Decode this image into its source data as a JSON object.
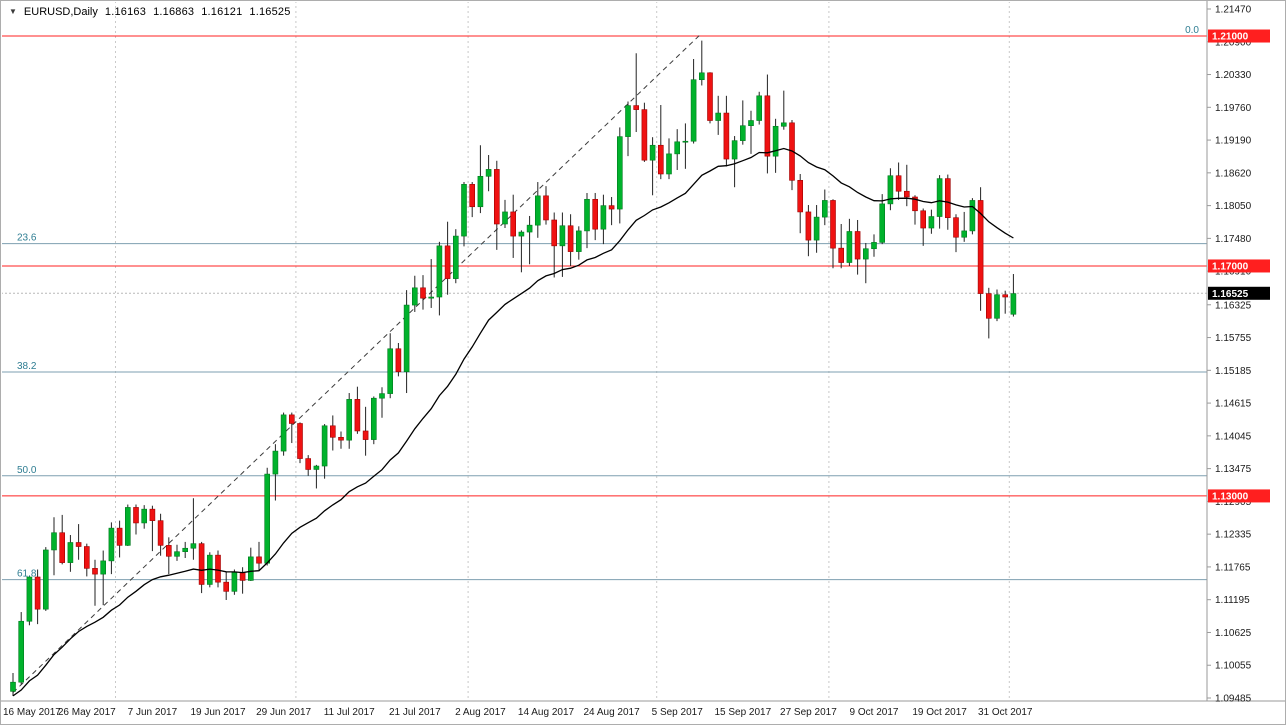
{
  "header": {
    "expand_icon": "▼",
    "symbol": "EURUSD,Daily",
    "open": "1.16163",
    "high": "1.16863",
    "low": "1.16121",
    "close": "1.16525"
  },
  "colors": {
    "up": "#00b22c",
    "up_stroke": "#007a1e",
    "down": "#ef1212",
    "down_stroke": "#9d0000",
    "wick": "#222222",
    "ma": "#000000",
    "trendline": "#3c3c3c",
    "separator": "#c9c9c9",
    "fib_line": "#7e9fb0",
    "fib_label": "#2e7d92",
    "hline": "#ff2020",
    "current_line": "#b8b8b8",
    "frame": "#9a9a9a",
    "axis_text": "#1a1a1a",
    "tag_red_bg": "#ff1f1f",
    "tag_black_bg": "#000000",
    "tag_text": "#ffffff"
  },
  "y_axis": {
    "labels": [
      "1.21470",
      "1.20900",
      "1.20330",
      "1.19760",
      "1.19190",
      "1.18620",
      "1.18050",
      "1.17480",
      "1.16910",
      "1.16325",
      "1.15755",
      "1.15185",
      "1.14615",
      "1.14045",
      "1.13475",
      "1.12905",
      "1.12335",
      "1.11765",
      "1.11195",
      "1.10625",
      "1.10055",
      "1.09485"
    ]
  },
  "x_axis": {
    "labels": [
      {
        "i": 1,
        "t": "16 May 2017"
      },
      {
        "i": 9,
        "t": "26 May 2017"
      },
      {
        "i": 17,
        "t": "7 Jun 2017"
      },
      {
        "i": 25,
        "t": "19 Jun 2017"
      },
      {
        "i": 33,
        "t": "29 Jun 2017"
      },
      {
        "i": 41,
        "t": "11 Jul 2017"
      },
      {
        "i": 49,
        "t": "21 Jul 2017"
      },
      {
        "i": 57,
        "t": "2 Aug 2017"
      },
      {
        "i": 65,
        "t": "14 Aug 2017"
      },
      {
        "i": 73,
        "t": "24 Aug 2017"
      },
      {
        "i": 81,
        "t": "5 Sep 2017"
      },
      {
        "i": 89,
        "t": "15 Sep 2017"
      },
      {
        "i": 97,
        "t": "27 Sep 2017"
      },
      {
        "i": 105,
        "t": "9 Oct 2017"
      },
      {
        "i": 113,
        "t": "19 Oct 2017"
      },
      {
        "i": 121,
        "t": "31 Oct 2017"
      }
    ]
  },
  "price_scale": {
    "current_tag": "1.16525"
  },
  "chart_data": {
    "type": "candlestick",
    "symbol": "EURUSD",
    "timeframe": "Daily",
    "current_ohlc": {
      "open": 1.16163,
      "high": 1.16863,
      "low": 1.16121,
      "close": 1.16525
    },
    "y_range": [
      1.09485,
      1.2147
    ],
    "candles": [
      [
        1.096,
        1.0992,
        1.0952,
        1.0976
      ],
      [
        1.0976,
        1.1098,
        1.0972,
        1.1082
      ],
      [
        1.1082,
        1.116,
        1.1075,
        1.1159
      ],
      [
        1.1159,
        1.1172,
        1.1077,
        1.1103
      ],
      [
        1.1103,
        1.1211,
        1.11,
        1.1206
      ],
      [
        1.1206,
        1.1263,
        1.1162,
        1.1236
      ],
      [
        1.1236,
        1.1267,
        1.1181,
        1.1184
      ],
      [
        1.1184,
        1.1232,
        1.1168,
        1.1219
      ],
      [
        1.1219,
        1.1251,
        1.1189,
        1.1212
      ],
      [
        1.1212,
        1.1217,
        1.116,
        1.1174
      ],
      [
        1.1174,
        1.1189,
        1.1109,
        1.1164
      ],
      [
        1.1164,
        1.1205,
        1.111,
        1.1187
      ],
      [
        1.1187,
        1.1254,
        1.1164,
        1.1244
      ],
      [
        1.1244,
        1.1257,
        1.1193,
        1.1214
      ],
      [
        1.1214,
        1.1285,
        1.1213,
        1.128
      ],
      [
        1.128,
        1.1285,
        1.1233,
        1.1253
      ],
      [
        1.1253,
        1.1284,
        1.1243,
        1.1277
      ],
      [
        1.1277,
        1.1283,
        1.1204,
        1.1257
      ],
      [
        1.1257,
        1.1269,
        1.1196,
        1.1214
      ],
      [
        1.1214,
        1.1228,
        1.1164,
        1.1195
      ],
      [
        1.1195,
        1.1215,
        1.1187,
        1.1203
      ],
      [
        1.1203,
        1.122,
        1.1192,
        1.1209
      ],
      [
        1.1209,
        1.1296,
        1.1189,
        1.1217
      ],
      [
        1.1217,
        1.122,
        1.1131,
        1.1146
      ],
      [
        1.1146,
        1.1202,
        1.1141,
        1.1197
      ],
      [
        1.1197,
        1.1205,
        1.1141,
        1.115
      ],
      [
        1.115,
        1.1168,
        1.1119,
        1.1134
      ],
      [
        1.1134,
        1.1172,
        1.1128,
        1.1167
      ],
      [
        1.1167,
        1.1176,
        1.113,
        1.1153
      ],
      [
        1.1153,
        1.121,
        1.1152,
        1.1194
      ],
      [
        1.1194,
        1.122,
        1.117,
        1.1183
      ],
      [
        1.1183,
        1.1349,
        1.1179,
        1.1338
      ],
      [
        1.1338,
        1.139,
        1.1292,
        1.1378
      ],
      [
        1.1378,
        1.1445,
        1.137,
        1.1441
      ],
      [
        1.1441,
        1.1445,
        1.1392,
        1.1426
      ],
      [
        1.1426,
        1.1428,
        1.1357,
        1.1365
      ],
      [
        1.1365,
        1.1371,
        1.1335,
        1.1346
      ],
      [
        1.1346,
        1.1354,
        1.1313,
        1.1352
      ],
      [
        1.1352,
        1.1425,
        1.133,
        1.1422
      ],
      [
        1.1422,
        1.144,
        1.1379,
        1.1402
      ],
      [
        1.1402,
        1.1412,
        1.1382,
        1.1397
      ],
      [
        1.1397,
        1.1479,
        1.1382,
        1.1468
      ],
      [
        1.1468,
        1.149,
        1.1408,
        1.1413
      ],
      [
        1.1413,
        1.1455,
        1.137,
        1.1398
      ],
      [
        1.1398,
        1.1473,
        1.139,
        1.147
      ],
      [
        1.147,
        1.1489,
        1.1436,
        1.1478
      ],
      [
        1.1478,
        1.1583,
        1.147,
        1.1556
      ],
      [
        1.1556,
        1.1566,
        1.1508,
        1.1516
      ],
      [
        1.1516,
        1.1658,
        1.1479,
        1.1632
      ],
      [
        1.1632,
        1.1683,
        1.162,
        1.1662
      ],
      [
        1.1662,
        1.1684,
        1.1624,
        1.1644
      ],
      [
        1.1644,
        1.1712,
        1.1627,
        1.1646
      ],
      [
        1.1646,
        1.1742,
        1.1614,
        1.1735
      ],
      [
        1.1735,
        1.1777,
        1.165,
        1.1678
      ],
      [
        1.1678,
        1.1764,
        1.167,
        1.1752
      ],
      [
        1.1752,
        1.1846,
        1.1734,
        1.1842
      ],
      [
        1.1842,
        1.1846,
        1.1785,
        1.1803
      ],
      [
        1.1803,
        1.191,
        1.1792,
        1.1856
      ],
      [
        1.1856,
        1.1893,
        1.183,
        1.1868
      ],
      [
        1.1868,
        1.1883,
        1.1728,
        1.1773
      ],
      [
        1.1773,
        1.1815,
        1.1766,
        1.1794
      ],
      [
        1.1794,
        1.1824,
        1.1714,
        1.1752
      ],
      [
        1.1752,
        1.1762,
        1.1689,
        1.1759
      ],
      [
        1.1759,
        1.1787,
        1.1703,
        1.1771
      ],
      [
        1.1771,
        1.1846,
        1.1749,
        1.1822
      ],
      [
        1.1822,
        1.1839,
        1.1772,
        1.178
      ],
      [
        1.178,
        1.1793,
        1.168,
        1.1735
      ],
      [
        1.1735,
        1.1793,
        1.1681,
        1.177
      ],
      [
        1.177,
        1.179,
        1.17,
        1.1725
      ],
      [
        1.1725,
        1.1769,
        1.1711,
        1.1761
      ],
      [
        1.1761,
        1.1827,
        1.1731,
        1.1816
      ],
      [
        1.1816,
        1.1827,
        1.1745,
        1.1764
      ],
      [
        1.1764,
        1.1824,
        1.1738,
        1.1805
      ],
      [
        1.1805,
        1.182,
        1.1771,
        1.1799
      ],
      [
        1.1799,
        1.1941,
        1.1774,
        1.1925
      ],
      [
        1.1925,
        1.1986,
        1.1891,
        1.1979
      ],
      [
        1.1979,
        1.207,
        1.1933,
        1.1972
      ],
      [
        1.1972,
        1.1984,
        1.1881,
        1.1884
      ],
      [
        1.1884,
        1.1924,
        1.1823,
        1.191
      ],
      [
        1.191,
        1.198,
        1.1851,
        1.186
      ],
      [
        1.186,
        1.1922,
        1.1851,
        1.1895
      ],
      [
        1.1895,
        1.1938,
        1.1867,
        1.1916
      ],
      [
        1.1916,
        1.1948,
        1.1869,
        1.1917
      ],
      [
        1.1917,
        1.206,
        1.1913,
        1.2024
      ],
      [
        1.2024,
        1.2092,
        1.2014,
        1.2036
      ],
      [
        1.2036,
        1.2037,
        1.1948,
        1.1953
      ],
      [
        1.1953,
        1.1996,
        1.1928,
        1.1966
      ],
      [
        1.1966,
        1.1996,
        1.1873,
        1.1886
      ],
      [
        1.1886,
        1.1926,
        1.1837,
        1.1918
      ],
      [
        1.1918,
        1.1988,
        1.1911,
        1.1944
      ],
      [
        1.1944,
        1.197,
        1.1895,
        1.1953
      ],
      [
        1.1953,
        1.2003,
        1.1946,
        1.1996
      ],
      [
        1.1996,
        1.2033,
        1.1861,
        1.1891
      ],
      [
        1.1891,
        1.1956,
        1.1862,
        1.1943
      ],
      [
        1.1943,
        1.2005,
        1.1937,
        1.1949
      ],
      [
        1.1949,
        1.1954,
        1.1832,
        1.1849
      ],
      [
        1.1849,
        1.186,
        1.1757,
        1.1794
      ],
      [
        1.1794,
        1.1806,
        1.1717,
        1.1745
      ],
      [
        1.1745,
        1.1806,
        1.1723,
        1.1785
      ],
      [
        1.1785,
        1.1833,
        1.1771,
        1.1814
      ],
      [
        1.1814,
        1.1816,
        1.1696,
        1.1731
      ],
      [
        1.1731,
        1.1773,
        1.1696,
        1.1706
      ],
      [
        1.1706,
        1.1782,
        1.17,
        1.176
      ],
      [
        1.176,
        1.178,
        1.1685,
        1.1712
      ],
      [
        1.1712,
        1.174,
        1.167,
        1.173
      ],
      [
        1.173,
        1.1755,
        1.1716,
        1.1741
      ],
      [
        1.1741,
        1.1825,
        1.1738,
        1.1808
      ],
      [
        1.1808,
        1.187,
        1.1797,
        1.1857
      ],
      [
        1.1857,
        1.188,
        1.1815,
        1.183
      ],
      [
        1.183,
        1.1876,
        1.1804,
        1.182
      ],
      [
        1.182,
        1.1823,
        1.1772,
        1.1796
      ],
      [
        1.1796,
        1.18,
        1.1735,
        1.1766
      ],
      [
        1.1766,
        1.1798,
        1.1756,
        1.1786
      ],
      [
        1.1786,
        1.1858,
        1.1765,
        1.1852
      ],
      [
        1.1852,
        1.1859,
        1.1763,
        1.1784
      ],
      [
        1.1784,
        1.179,
        1.1724,
        1.175
      ],
      [
        1.175,
        1.1794,
        1.1742,
        1.1761
      ],
      [
        1.1761,
        1.1818,
        1.1755,
        1.1814
      ],
      [
        1.1814,
        1.1837,
        1.1622,
        1.1652
      ],
      [
        1.1652,
        1.1662,
        1.1574,
        1.1609
      ],
      [
        1.1609,
        1.1659,
        1.1604,
        1.165
      ],
      [
        1.165,
        1.1657,
        1.1617,
        1.1646
      ],
      [
        1.1616,
        1.1686,
        1.1612,
        1.1652
      ]
    ],
    "overlays": {
      "horizontal_lines": [
        {
          "price": 1.21,
          "label": "1.21000"
        },
        {
          "price": 1.17,
          "label": "1.17000"
        },
        {
          "price": 1.13,
          "label": "1.13000"
        }
      ],
      "fibonacci": [
        {
          "pct": "0.0",
          "price": 1.21,
          "label_side": "right"
        },
        {
          "pct": "23.6",
          "price": 1.17389,
          "label_side": "left"
        },
        {
          "pct": "38.2",
          "price": 1.15155,
          "label_side": "left"
        },
        {
          "pct": "50.0",
          "price": 1.1335,
          "label_side": "left"
        },
        {
          "pct": "61.8",
          "price": 1.11545,
          "label_side": "left"
        }
      ],
      "trendline": {
        "from_index": 0,
        "from_price": 1.0958,
        "to_index": 84,
        "to_price": 1.2105
      },
      "month_separators": [
        13,
        35,
        56,
        79,
        100,
        122
      ],
      "moving_average": {
        "alpha": 0.08,
        "seed": 1.095
      }
    }
  }
}
